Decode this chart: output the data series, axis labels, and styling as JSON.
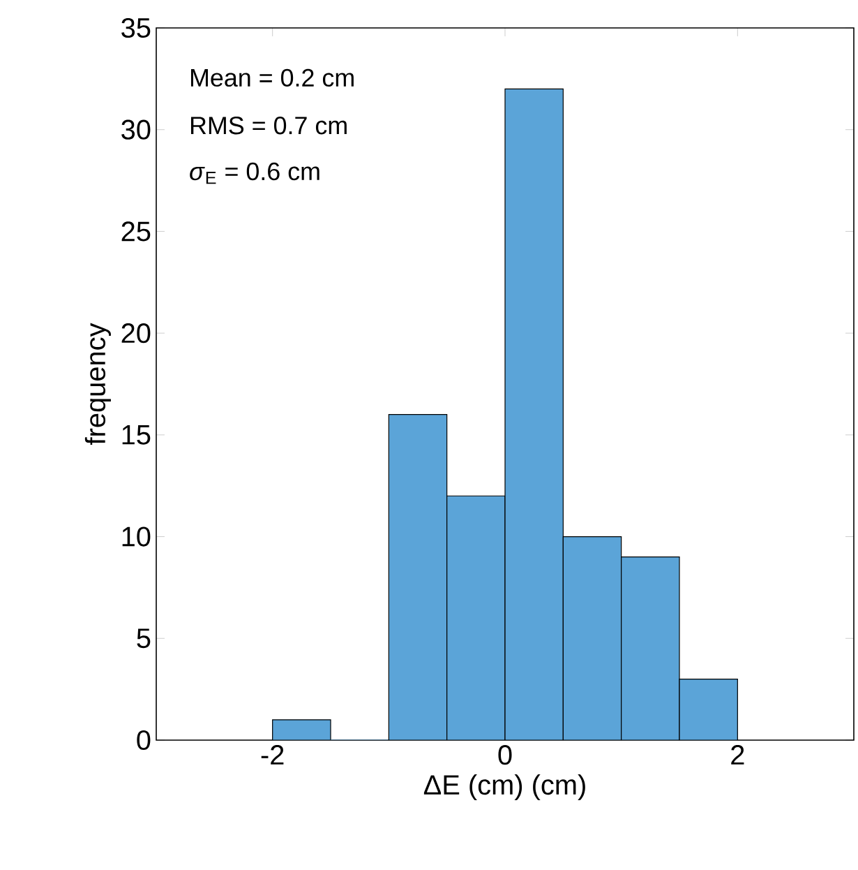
{
  "chart_data": {
    "type": "histogram",
    "xlabel": "ΔE (cm) (cm)",
    "ylabel": "frequency",
    "bins": [
      -2,
      -1.5,
      -1,
      -0.5,
      0,
      0.5,
      1,
      1.5,
      2
    ],
    "values": [
      1,
      0,
      16,
      12,
      32,
      10,
      9,
      3
    ],
    "color": "#5ba4d8",
    "xlim": [
      -3,
      3
    ],
    "xticks": [
      -2,
      0,
      2
    ],
    "ylim": [
      0,
      35
    ],
    "yticks": [
      0,
      5,
      10,
      15,
      20,
      25,
      30,
      35
    ],
    "grid": false,
    "annotations": [
      "Mean = 0.2 cm",
      "RMS = 0.7 cm",
      "*σ*$_{E}$ = 0.6 cm"
    ]
  }
}
